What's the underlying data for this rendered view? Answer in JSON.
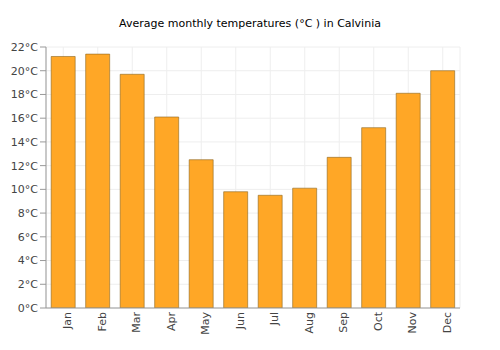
{
  "chart_data": {
    "type": "bar",
    "title": "Average monthly temperatures (°C ) in Calvinia",
    "categories": [
      "Jan",
      "Feb",
      "Mar",
      "Apr",
      "May",
      "Jun",
      "Jul",
      "Aug",
      "Sep",
      "Oct",
      "Nov",
      "Dec"
    ],
    "values": [
      21.2,
      21.4,
      19.7,
      16.1,
      12.5,
      9.8,
      9.5,
      10.1,
      12.7,
      15.2,
      18.1,
      20.0
    ],
    "color": "#ffa726",
    "ylim": [
      0,
      22
    ],
    "yticks": [
      {
        "value": 0,
        "label": "0°C"
      },
      {
        "value": 2,
        "label": "2°C"
      },
      {
        "value": 4,
        "label": "4°C"
      },
      {
        "value": 6,
        "label": "6°C"
      },
      {
        "value": 8,
        "label": "8°C"
      },
      {
        "value": 10,
        "label": "10°C"
      },
      {
        "value": 12,
        "label": "12°C"
      },
      {
        "value": 14,
        "label": "14°C"
      },
      {
        "value": 16,
        "label": "16°C"
      },
      {
        "value": 18,
        "label": "18°C"
      },
      {
        "value": 20,
        "label": "20°C"
      },
      {
        "value": 22,
        "label": "22°C"
      }
    ],
    "grid": true
  }
}
